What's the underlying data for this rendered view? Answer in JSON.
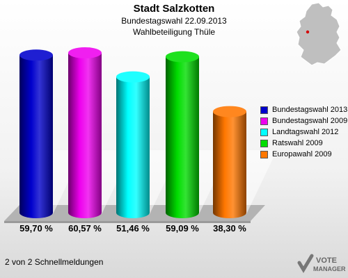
{
  "header": {
    "title": "Stadt Salzkotten",
    "subtitle": "Bundestagswahl 22.09.2013",
    "subtitle2": "Wahlbeteiligung Thüle"
  },
  "footer": {
    "text": "2 von 2 Schnellmeldungen"
  },
  "logo": {
    "line1": "VOTE",
    "line2": "MANAGER"
  },
  "chart_data": {
    "type": "bar",
    "categories": [
      "Bundestagswahl 2013",
      "Bundestagswahl 2009",
      "Landtagswahl 2012",
      "Ratswahl 2009",
      "Europawahl 2009"
    ],
    "values": [
      59.7,
      60.57,
      51.46,
      59.09,
      38.3
    ],
    "value_labels": [
      "59,70 %",
      "60,57 %",
      "51,46 %",
      "59,09 %",
      "38,30 %"
    ],
    "colors": [
      "#0000cc",
      "#ee00ee",
      "#00ffff",
      "#00dd00",
      "#ff7700"
    ],
    "ylim": [
      0,
      60.57
    ],
    "grid": false,
    "legend": "right"
  }
}
